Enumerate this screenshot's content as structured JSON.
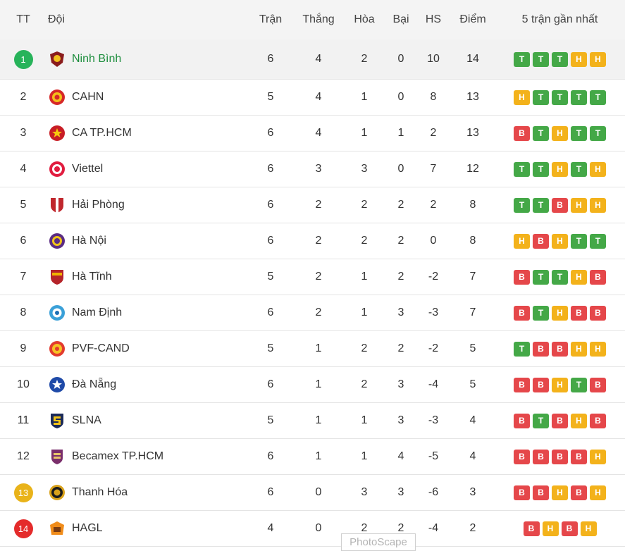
{
  "colors": {
    "win": "#44a847",
    "draw": "#f3b21b",
    "loss": "#e5474a",
    "rank_green": "#27b35a",
    "rank_yellow": "#e9b31a",
    "rank_red": "#e42b2b"
  },
  "columns": {
    "tt": "TT",
    "team": "Đội",
    "played": "Trận",
    "won": "Thắng",
    "drawn": "Hòa",
    "lost": "Bại",
    "gd": "HS",
    "points": "Điểm",
    "form": "5 trận gần nhất"
  },
  "rows": [
    {
      "rank": "1",
      "team": "Ninh Bình",
      "logo": "ninh-binh-logo",
      "played": "6",
      "won": "4",
      "drawn": "2",
      "lost": "0",
      "gd": "10",
      "points": "14",
      "form": [
        "T",
        "T",
        "T",
        "H",
        "H"
      ],
      "rank_style": "green",
      "highlight": true
    },
    {
      "rank": "2",
      "team": "CAHN",
      "logo": "cahn-logo",
      "played": "5",
      "won": "4",
      "drawn": "1",
      "lost": "0",
      "gd": "8",
      "points": "13",
      "form": [
        "H",
        "T",
        "T",
        "T",
        "T"
      ]
    },
    {
      "rank": "3",
      "team": "CA TP.HCM",
      "logo": "ca-tphcm-logo",
      "played": "6",
      "won": "4",
      "drawn": "1",
      "lost": "1",
      "gd": "2",
      "points": "13",
      "form": [
        "B",
        "T",
        "H",
        "T",
        "T"
      ]
    },
    {
      "rank": "4",
      "team": "Viettel",
      "logo": "viettel-logo",
      "played": "6",
      "won": "3",
      "drawn": "3",
      "lost": "0",
      "gd": "7",
      "points": "12",
      "form": [
        "T",
        "T",
        "H",
        "T",
        "H"
      ]
    },
    {
      "rank": "5",
      "team": "Hải Phòng",
      "logo": "hai-phong-logo",
      "played": "6",
      "won": "2",
      "drawn": "2",
      "lost": "2",
      "gd": "2",
      "points": "8",
      "form": [
        "T",
        "T",
        "B",
        "H",
        "H"
      ]
    },
    {
      "rank": "6",
      "team": "Hà Nội",
      "logo": "ha-noi-logo",
      "played": "6",
      "won": "2",
      "drawn": "2",
      "lost": "2",
      "gd": "0",
      "points": "8",
      "form": [
        "H",
        "B",
        "H",
        "T",
        "T"
      ]
    },
    {
      "rank": "7",
      "team": "Hà Tĩnh",
      "logo": "ha-tinh-logo",
      "played": "5",
      "won": "2",
      "drawn": "1",
      "lost": "2",
      "gd": "-2",
      "points": "7",
      "form": [
        "B",
        "T",
        "T",
        "H",
        "B"
      ]
    },
    {
      "rank": "8",
      "team": "Nam Định",
      "logo": "nam-dinh-logo",
      "played": "6",
      "won": "2",
      "drawn": "1",
      "lost": "3",
      "gd": "-3",
      "points": "7",
      "form": [
        "B",
        "T",
        "H",
        "B",
        "B"
      ]
    },
    {
      "rank": "9",
      "team": "PVF-CAND",
      "logo": "pvf-cand-logo",
      "played": "5",
      "won": "1",
      "drawn": "2",
      "lost": "2",
      "gd": "-2",
      "points": "5",
      "form": [
        "T",
        "B",
        "B",
        "H",
        "H"
      ]
    },
    {
      "rank": "10",
      "team": "Đà Nẵng",
      "logo": "da-nang-logo",
      "played": "6",
      "won": "1",
      "drawn": "2",
      "lost": "3",
      "gd": "-4",
      "points": "5",
      "form": [
        "B",
        "B",
        "H",
        "T",
        "B"
      ]
    },
    {
      "rank": "11",
      "team": "SLNA",
      "logo": "slna-logo",
      "played": "5",
      "won": "1",
      "drawn": "1",
      "lost": "3",
      "gd": "-3",
      "points": "4",
      "form": [
        "B",
        "T",
        "B",
        "H",
        "B"
      ]
    },
    {
      "rank": "12",
      "team": "Becamex TP.HCM",
      "logo": "becamex-logo",
      "played": "6",
      "won": "1",
      "drawn": "1",
      "lost": "4",
      "gd": "-5",
      "points": "4",
      "form": [
        "B",
        "B",
        "B",
        "B",
        "H"
      ]
    },
    {
      "rank": "13",
      "team": "Thanh Hóa",
      "logo": "thanh-hoa-logo",
      "played": "6",
      "won": "0",
      "drawn": "3",
      "lost": "3",
      "gd": "-6",
      "points": "3",
      "form": [
        "B",
        "B",
        "H",
        "B",
        "H"
      ],
      "rank_style": "yellow"
    },
    {
      "rank": "14",
      "team": "HAGL",
      "logo": "hagl-logo",
      "played": "4",
      "won": "0",
      "drawn": "2",
      "lost": "2",
      "gd": "-4",
      "points": "2",
      "form": [
        "B",
        "H",
        "B",
        "H"
      ],
      "rank_style": "red"
    }
  ],
  "watermark": "PhotoScape"
}
